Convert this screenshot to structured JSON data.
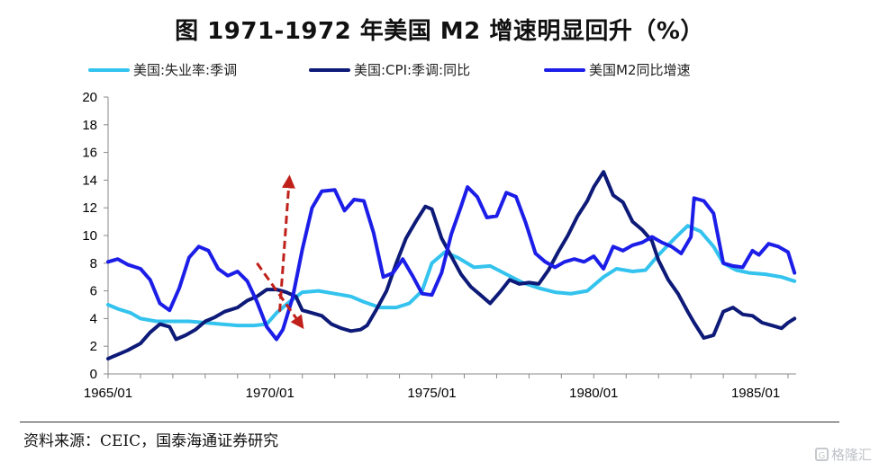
{
  "title": "图    1971-1972 年美国 M2 增速明显回升（%）",
  "source": "资料来源：CEIC，国泰海通证券研究",
  "watermark": "格隆汇",
  "colors": {
    "unemployment": "#33c3ee",
    "cpi": "#0d1a78",
    "m2": "#1c1ee8",
    "arrow": "#c0201a",
    "axis": "#888888"
  },
  "chart_data": {
    "type": "line",
    "title": "1971-1972 年美国 M2 增速明显回升（%）",
    "xlabel": "",
    "ylabel": "",
    "xlim": [
      1965.0,
      1986.25
    ],
    "ylim": [
      0,
      20
    ],
    "yticks": [
      0,
      2,
      4,
      6,
      8,
      10,
      12,
      14,
      16,
      18,
      20
    ],
    "xticks": [
      {
        "label": "1965/01",
        "x": 1965.0
      },
      {
        "label": "1970/01",
        "x": 1970.0
      },
      {
        "label": "1975/01",
        "x": 1975.0
      },
      {
        "label": "1980/01",
        "x": 1980.0
      },
      {
        "label": "1985/01",
        "x": 1985.0
      }
    ],
    "legend_position": "top",
    "series": [
      {
        "name": "美国:失业率:季调",
        "color_key": "unemployment",
        "points": [
          [
            1965.0,
            5.0
          ],
          [
            1965.3,
            4.7
          ],
          [
            1965.7,
            4.4
          ],
          [
            1966.0,
            4.0
          ],
          [
            1966.5,
            3.8
          ],
          [
            1967.0,
            3.8
          ],
          [
            1967.5,
            3.8
          ],
          [
            1968.0,
            3.7
          ],
          [
            1968.5,
            3.6
          ],
          [
            1969.0,
            3.5
          ],
          [
            1969.5,
            3.5
          ],
          [
            1969.9,
            3.6
          ],
          [
            1970.2,
            4.4
          ],
          [
            1970.6,
            5.2
          ],
          [
            1971.0,
            5.9
          ],
          [
            1971.5,
            6.0
          ],
          [
            1972.0,
            5.8
          ],
          [
            1972.5,
            5.6
          ],
          [
            1972.9,
            5.2
          ],
          [
            1973.4,
            4.8
          ],
          [
            1973.9,
            4.8
          ],
          [
            1974.3,
            5.1
          ],
          [
            1974.7,
            6.0
          ],
          [
            1975.0,
            8.0
          ],
          [
            1975.4,
            8.8
          ],
          [
            1975.8,
            8.4
          ],
          [
            1976.3,
            7.7
          ],
          [
            1976.8,
            7.8
          ],
          [
            1977.3,
            7.2
          ],
          [
            1977.8,
            6.6
          ],
          [
            1978.3,
            6.2
          ],
          [
            1978.8,
            5.9
          ],
          [
            1979.3,
            5.8
          ],
          [
            1979.8,
            6.0
          ],
          [
            1980.3,
            7.0
          ],
          [
            1980.7,
            7.6
          ],
          [
            1981.2,
            7.4
          ],
          [
            1981.6,
            7.5
          ],
          [
            1982.0,
            8.6
          ],
          [
            1982.5,
            9.8
          ],
          [
            1982.9,
            10.7
          ],
          [
            1983.3,
            10.3
          ],
          [
            1983.7,
            9.2
          ],
          [
            1984.0,
            8.0
          ],
          [
            1984.4,
            7.5
          ],
          [
            1984.8,
            7.3
          ],
          [
            1985.3,
            7.2
          ],
          [
            1985.8,
            7.0
          ],
          [
            1986.2,
            6.7
          ]
        ]
      },
      {
        "name": "美国:CPI:季调:同比",
        "color_key": "cpi",
        "points": [
          [
            1965.0,
            1.1
          ],
          [
            1965.3,
            1.4
          ],
          [
            1965.6,
            1.7
          ],
          [
            1966.0,
            2.2
          ],
          [
            1966.3,
            3.0
          ],
          [
            1966.6,
            3.6
          ],
          [
            1966.9,
            3.4
          ],
          [
            1967.1,
            2.5
          ],
          [
            1967.4,
            2.8
          ],
          [
            1967.7,
            3.2
          ],
          [
            1968.0,
            3.8
          ],
          [
            1968.3,
            4.1
          ],
          [
            1968.6,
            4.5
          ],
          [
            1969.0,
            4.8
          ],
          [
            1969.3,
            5.3
          ],
          [
            1969.6,
            5.6
          ],
          [
            1969.9,
            6.1
          ],
          [
            1970.2,
            6.1
          ],
          [
            1970.5,
            5.9
          ],
          [
            1970.8,
            5.6
          ],
          [
            1971.0,
            4.6
          ],
          [
            1971.3,
            4.4
          ],
          [
            1971.6,
            4.2
          ],
          [
            1971.9,
            3.6
          ],
          [
            1972.2,
            3.3
          ],
          [
            1972.5,
            3.1
          ],
          [
            1972.8,
            3.2
          ],
          [
            1973.0,
            3.5
          ],
          [
            1973.3,
            4.7
          ],
          [
            1973.6,
            6.0
          ],
          [
            1973.9,
            8.0
          ],
          [
            1974.2,
            9.8
          ],
          [
            1974.5,
            11.0
          ],
          [
            1974.8,
            12.1
          ],
          [
            1975.0,
            11.9
          ],
          [
            1975.3,
            9.8
          ],
          [
            1975.6,
            8.5
          ],
          [
            1975.9,
            7.2
          ],
          [
            1976.2,
            6.3
          ],
          [
            1976.5,
            5.7
          ],
          [
            1976.8,
            5.1
          ],
          [
            1977.1,
            5.9
          ],
          [
            1977.4,
            6.8
          ],
          [
            1977.7,
            6.5
          ],
          [
            1978.0,
            6.6
          ],
          [
            1978.3,
            6.5
          ],
          [
            1978.6,
            7.5
          ],
          [
            1978.9,
            8.8
          ],
          [
            1979.2,
            10.0
          ],
          [
            1979.5,
            11.4
          ],
          [
            1979.8,
            12.5
          ],
          [
            1980.0,
            13.5
          ],
          [
            1980.3,
            14.6
          ],
          [
            1980.6,
            12.9
          ],
          [
            1980.9,
            12.4
          ],
          [
            1981.2,
            11.0
          ],
          [
            1981.5,
            10.4
          ],
          [
            1981.8,
            9.6
          ],
          [
            1982.0,
            8.2
          ],
          [
            1982.3,
            6.8
          ],
          [
            1982.6,
            5.8
          ],
          [
            1982.9,
            4.5
          ],
          [
            1983.1,
            3.7
          ],
          [
            1983.4,
            2.6
          ],
          [
            1983.7,
            2.8
          ],
          [
            1984.0,
            4.5
          ],
          [
            1984.3,
            4.8
          ],
          [
            1984.6,
            4.3
          ],
          [
            1984.9,
            4.2
          ],
          [
            1985.2,
            3.7
          ],
          [
            1985.5,
            3.5
          ],
          [
            1985.8,
            3.3
          ],
          [
            1986.0,
            3.7
          ],
          [
            1986.2,
            4.0
          ]
        ]
      },
      {
        "name": "美国M2同比增速",
        "color_key": "m2",
        "points": [
          [
            1965.0,
            8.1
          ],
          [
            1965.3,
            8.3
          ],
          [
            1965.6,
            7.9
          ],
          [
            1966.0,
            7.6
          ],
          [
            1966.3,
            6.8
          ],
          [
            1966.6,
            5.1
          ],
          [
            1966.9,
            4.6
          ],
          [
            1967.2,
            6.2
          ],
          [
            1967.5,
            8.4
          ],
          [
            1967.8,
            9.2
          ],
          [
            1968.1,
            8.9
          ],
          [
            1968.4,
            7.6
          ],
          [
            1968.7,
            7.1
          ],
          [
            1969.0,
            7.4
          ],
          [
            1969.3,
            6.7
          ],
          [
            1969.6,
            5.2
          ],
          [
            1969.9,
            3.4
          ],
          [
            1970.2,
            2.5
          ],
          [
            1970.4,
            3.2
          ],
          [
            1970.7,
            5.5
          ],
          [
            1971.0,
            9.0
          ],
          [
            1971.3,
            12.0
          ],
          [
            1971.6,
            13.2
          ],
          [
            1972.0,
            13.3
          ],
          [
            1972.3,
            11.8
          ],
          [
            1972.6,
            12.6
          ],
          [
            1972.9,
            12.5
          ],
          [
            1973.2,
            10.2
          ],
          [
            1973.5,
            7.0
          ],
          [
            1973.8,
            7.3
          ],
          [
            1974.1,
            8.3
          ],
          [
            1974.4,
            7.1
          ],
          [
            1974.7,
            5.8
          ],
          [
            1975.0,
            5.7
          ],
          [
            1975.3,
            7.3
          ],
          [
            1975.6,
            10.1
          ],
          [
            1975.9,
            12.1
          ],
          [
            1976.1,
            13.5
          ],
          [
            1976.4,
            12.8
          ],
          [
            1976.7,
            11.3
          ],
          [
            1977.0,
            11.4
          ],
          [
            1977.3,
            13.1
          ],
          [
            1977.6,
            12.8
          ],
          [
            1977.9,
            10.9
          ],
          [
            1978.2,
            8.7
          ],
          [
            1978.5,
            8.1
          ],
          [
            1978.8,
            7.7
          ],
          [
            1979.1,
            8.1
          ],
          [
            1979.4,
            8.3
          ],
          [
            1979.7,
            8.1
          ],
          [
            1980.0,
            8.5
          ],
          [
            1980.3,
            7.6
          ],
          [
            1980.6,
            9.2
          ],
          [
            1980.9,
            8.9
          ],
          [
            1981.2,
            9.3
          ],
          [
            1981.5,
            9.5
          ],
          [
            1981.8,
            9.9
          ],
          [
            1982.1,
            9.5
          ],
          [
            1982.4,
            9.2
          ],
          [
            1982.7,
            8.7
          ],
          [
            1983.0,
            9.9
          ],
          [
            1983.1,
            12.7
          ],
          [
            1983.4,
            12.5
          ],
          [
            1983.7,
            11.6
          ],
          [
            1984.0,
            8.0
          ],
          [
            1984.3,
            7.8
          ],
          [
            1984.6,
            7.7
          ],
          [
            1984.9,
            8.9
          ],
          [
            1985.1,
            8.6
          ],
          [
            1985.4,
            9.4
          ],
          [
            1985.7,
            9.2
          ],
          [
            1986.0,
            8.8
          ],
          [
            1986.2,
            7.3
          ]
        ]
      }
    ],
    "annotations": [
      {
        "type": "dashed-arrow",
        "color_key": "arrow",
        "from": [
          1969.6,
          8.0
        ],
        "to": [
          1971.0,
          3.4
        ],
        "meaning": "CPI decline"
      },
      {
        "type": "dashed-arrow",
        "color_key": "arrow",
        "from": [
          1970.3,
          4.5
        ],
        "to": [
          1970.6,
          14.2
        ],
        "meaning": "M2 rise"
      }
    ]
  }
}
